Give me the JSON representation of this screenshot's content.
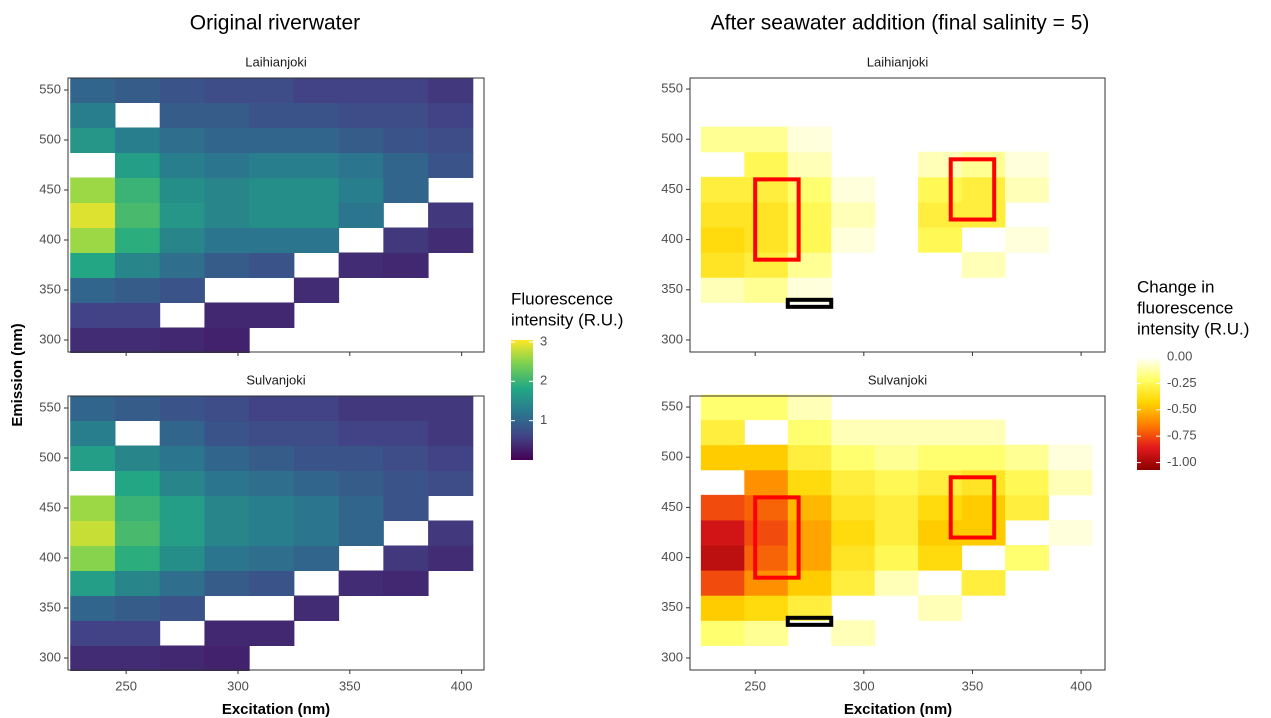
{
  "columns": [
    {
      "title": "Original riverwater",
      "legend": {
        "title": [
          "Fluorescence",
          "intensity (R.U.)"
        ],
        "lim": [
          0,
          3.05
        ],
        "ticks": [
          1,
          2,
          3
        ],
        "colorscale": [
          "#440154",
          "#414487",
          "#2a788e",
          "#22a884",
          "#7ad151",
          "#fde725"
        ]
      }
    },
    {
      "title": "After seawater addition (final salinity = 5)",
      "legend": {
        "title": [
          "Change in",
          "fluorescence",
          "intensity (R.U.)"
        ],
        "lim": [
          -1.07,
          0
        ],
        "ticks": [
          {
            "value": 0,
            "label": "0.00"
          },
          {
            "value": -0.25,
            "label": "-0.25"
          },
          {
            "value": -0.5,
            "label": "-0.50"
          },
          {
            "value": -0.75,
            "label": "-0.75"
          },
          {
            "value": -1,
            "label": "-1.00"
          }
        ],
        "colorscale": [
          "#8b0000",
          "#e31a1c",
          "#ff7f00",
          "#ffd500",
          "#ffff66",
          "#ffffff"
        ]
      }
    }
  ],
  "xlabel": "Excitation (nm)",
  "ylabel": "Emission (nm)",
  "chart_data": [
    {
      "type": "heatmap",
      "title": "Laihianjoki",
      "x": [
        235,
        255,
        275,
        295,
        315,
        335,
        355,
        375,
        395
      ],
      "y": [
        300,
        325,
        350,
        375,
        400,
        425,
        450,
        475,
        500,
        525,
        550
      ],
      "z": [
        [
          0.4,
          0.4,
          0.35,
          0.3,
          null,
          null,
          null,
          null,
          null
        ],
        [
          0.6,
          0.6,
          null,
          0.35,
          0.35,
          null,
          null,
          null,
          null
        ],
        [
          1.0,
          0.9,
          0.8,
          null,
          null,
          0.4,
          null,
          null,
          null
        ],
        [
          1.8,
          1.4,
          1.1,
          0.9,
          0.8,
          null,
          0.4,
          0.35,
          null
        ],
        [
          2.6,
          1.9,
          1.4,
          1.2,
          1.2,
          1.2,
          null,
          0.5,
          0.4
        ],
        [
          2.9,
          2.1,
          1.6,
          1.4,
          1.5,
          1.5,
          1.2,
          null,
          0.5
        ],
        [
          2.6,
          2.0,
          1.5,
          1.4,
          1.5,
          1.5,
          1.3,
          1.0,
          null
        ],
        [
          null,
          1.7,
          1.3,
          1.2,
          1.3,
          1.3,
          1.2,
          1.0,
          0.8
        ],
        [
          1.6,
          1.3,
          1.1,
          1.0,
          1.0,
          1.0,
          0.9,
          0.8,
          0.7
        ],
        [
          1.3,
          null,
          0.9,
          0.9,
          0.8,
          0.8,
          0.7,
          0.7,
          0.6
        ],
        [
          1.0,
          0.9,
          0.8,
          0.7,
          0.7,
          0.6,
          0.6,
          0.6,
          0.5
        ]
      ],
      "xlim": [
        224,
        410
      ],
      "ylim": [
        288,
        562
      ],
      "xticks": [
        250,
        300,
        350,
        400
      ],
      "yticks": [
        300,
        350,
        400,
        450,
        500,
        550
      ]
    },
    {
      "type": "heatmap",
      "title": "Sulvanjoki",
      "x": [
        235,
        255,
        275,
        295,
        315,
        335,
        355,
        375,
        395
      ],
      "y": [
        300,
        325,
        350,
        375,
        400,
        425,
        450,
        475,
        500,
        525,
        550
      ],
      "z": [
        [
          0.4,
          0.4,
          0.35,
          0.3,
          null,
          null,
          null,
          null,
          null
        ],
        [
          0.6,
          0.6,
          null,
          0.35,
          0.35,
          null,
          null,
          null,
          null
        ],
        [
          1.0,
          0.9,
          0.8,
          null,
          null,
          0.4,
          null,
          null,
          null
        ],
        [
          1.7,
          1.4,
          1.1,
          0.9,
          0.8,
          null,
          0.4,
          0.35,
          null
        ],
        [
          2.5,
          1.9,
          1.5,
          1.2,
          1.1,
          1.0,
          null,
          0.5,
          0.4
        ],
        [
          2.8,
          2.1,
          1.7,
          1.4,
          1.3,
          1.2,
          1.0,
          null,
          0.5
        ],
        [
          2.6,
          2.0,
          1.7,
          1.4,
          1.3,
          1.2,
          1.0,
          0.8,
          null
        ],
        [
          null,
          1.8,
          1.4,
          1.2,
          1.1,
          1.0,
          0.9,
          0.8,
          0.7
        ],
        [
          1.7,
          1.4,
          1.2,
          1.0,
          0.9,
          0.8,
          0.8,
          0.7,
          0.6
        ],
        [
          1.3,
          null,
          1.0,
          0.8,
          0.7,
          0.7,
          0.6,
          0.6,
          0.5
        ],
        [
          1.0,
          0.9,
          0.8,
          0.7,
          0.6,
          0.6,
          0.5,
          0.5,
          0.5
        ]
      ],
      "xlim": [
        224,
        410
      ],
      "ylim": [
        288,
        562
      ],
      "xticks": [
        250,
        300,
        350,
        400
      ],
      "yticks": [
        300,
        350,
        400,
        450,
        500,
        550
      ]
    },
    {
      "type": "heatmap",
      "title": "Laihianjoki",
      "x": [
        235,
        255,
        275,
        295,
        315,
        335,
        355,
        375,
        395
      ],
      "y": [
        300,
        325,
        350,
        375,
        400,
        425,
        450,
        475,
        500,
        525,
        550
      ],
      "z": [
        [
          null,
          null,
          null,
          null,
          null,
          null,
          null,
          null,
          null
        ],
        [
          null,
          null,
          null,
          null,
          null,
          null,
          null,
          null,
          null
        ],
        [
          -0.1,
          -0.15,
          -0.05,
          null,
          null,
          null,
          null,
          null,
          null
        ],
        [
          -0.35,
          -0.3,
          -0.15,
          null,
          null,
          null,
          -0.1,
          null,
          null
        ],
        [
          -0.4,
          -0.35,
          -0.25,
          -0.05,
          null,
          -0.25,
          null,
          -0.05,
          null
        ],
        [
          -0.35,
          -0.35,
          -0.25,
          -0.1,
          null,
          -0.3,
          -0.3,
          null,
          null
        ],
        [
          -0.3,
          -0.3,
          -0.2,
          -0.05,
          null,
          -0.25,
          -0.3,
          -0.1,
          null
        ],
        [
          null,
          -0.25,
          -0.1,
          null,
          null,
          -0.1,
          -0.15,
          -0.05,
          null
        ],
        [
          -0.15,
          -0.15,
          -0.05,
          null,
          null,
          null,
          null,
          null,
          null
        ],
        [
          null,
          null,
          null,
          null,
          null,
          null,
          null,
          null,
          null
        ],
        [
          null,
          null,
          null,
          null,
          null,
          null,
          null,
          null,
          null
        ]
      ],
      "regions": [
        {
          "x": [
            250,
            270
          ],
          "y": [
            380,
            460
          ],
          "color": "#ff0000"
        },
        {
          "x": [
            340,
            360
          ],
          "y": [
            420,
            480
          ],
          "color": "#ff0000"
        },
        {
          "x": [
            265,
            285
          ],
          "y": [
            333,
            340
          ],
          "color": "#000000"
        }
      ],
      "xlim": [
        220,
        411
      ],
      "ylim": [
        288,
        561
      ],
      "xticks": [
        250,
        300,
        350,
        400
      ],
      "yticks": [
        300,
        350,
        400,
        450,
        500,
        550
      ]
    },
    {
      "type": "heatmap",
      "title": "Sulvanjoki",
      "x": [
        235,
        255,
        275,
        295,
        315,
        335,
        355,
        375,
        395
      ],
      "y": [
        300,
        325,
        350,
        375,
        400,
        425,
        450,
        475,
        500,
        525,
        550
      ],
      "z": [
        [
          null,
          null,
          null,
          null,
          null,
          null,
          null,
          null,
          null
        ],
        [
          -0.2,
          -0.15,
          null,
          -0.1,
          null,
          null,
          null,
          null,
          null
        ],
        [
          -0.45,
          -0.4,
          -0.3,
          null,
          null,
          -0.1,
          null,
          null,
          null
        ],
        [
          -0.75,
          -0.6,
          -0.45,
          -0.3,
          -0.1,
          null,
          -0.3,
          null,
          null
        ],
        [
          -0.95,
          -0.7,
          -0.55,
          -0.35,
          -0.25,
          -0.4,
          null,
          -0.2,
          null
        ],
        [
          -0.9,
          -0.75,
          -0.55,
          -0.4,
          -0.3,
          -0.45,
          -0.45,
          null,
          -0.05
        ],
        [
          -0.75,
          -0.7,
          -0.5,
          -0.35,
          -0.3,
          -0.4,
          -0.45,
          -0.3,
          null
        ],
        [
          null,
          -0.6,
          -0.4,
          -0.3,
          -0.25,
          -0.3,
          -0.35,
          -0.25,
          -0.1
        ],
        [
          -0.45,
          -0.45,
          -0.3,
          -0.2,
          -0.15,
          -0.2,
          -0.2,
          -0.15,
          -0.05
        ],
        [
          -0.3,
          null,
          -0.2,
          -0.1,
          -0.1,
          -0.1,
          -0.1,
          null,
          null
        ],
        [
          -0.2,
          -0.2,
          -0.1,
          null,
          null,
          null,
          null,
          null,
          null
        ]
      ],
      "regions": [
        {
          "x": [
            250,
            270
          ],
          "y": [
            380,
            460
          ],
          "color": "#ff0000"
        },
        {
          "x": [
            340,
            360
          ],
          "y": [
            420,
            480
          ],
          "color": "#ff0000"
        },
        {
          "x": [
            265,
            285
          ],
          "y": [
            333,
            340
          ],
          "color": "#000000"
        }
      ],
      "xlim": [
        220,
        411
      ],
      "ylim": [
        288,
        561
      ],
      "xticks": [
        250,
        300,
        350,
        400
      ],
      "yticks": [
        300,
        350,
        400,
        450,
        500,
        550
      ]
    }
  ]
}
